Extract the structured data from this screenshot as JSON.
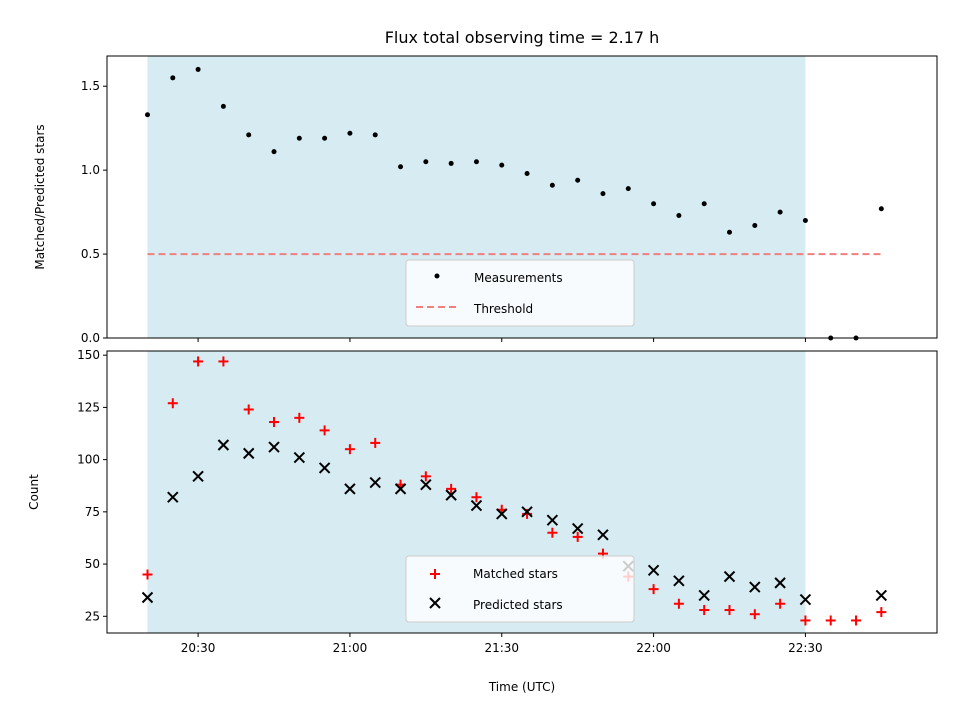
{
  "figure": {
    "title": "Flux total observing time = 2.17 h",
    "xlabel": "Time (UTC)",
    "xticks": [
      "20:30",
      "21:00",
      "21:30",
      "22:00",
      "22:30"
    ]
  },
  "colors": {
    "shade": "#add8e6",
    "threshold": "#f08080",
    "matched": "#ff0000",
    "predicted": "#000000",
    "measurements": "#000000"
  },
  "chart_data": [
    {
      "type": "scatter",
      "ylabel": "Matched/Predicted stars",
      "xlim": [
        "20:12",
        "22:56"
      ],
      "ylim": [
        0,
        1.68
      ],
      "yticks": [
        "0.0",
        "0.5",
        "1.0",
        "1.5"
      ],
      "shaded_interval": [
        "20:20",
        "22:30"
      ],
      "legend_position": "lower-center",
      "threshold": {
        "name": "Threshold",
        "value": 0.5,
        "x_range": [
          "20:20",
          "22:45"
        ]
      },
      "series": [
        {
          "name": "Measurements",
          "x": [
            "20:20",
            "20:25",
            "20:30",
            "20:35",
            "20:40",
            "20:45",
            "20:50",
            "20:55",
            "21:00",
            "21:05",
            "21:10",
            "21:15",
            "21:20",
            "21:25",
            "21:30",
            "21:35",
            "21:40",
            "21:45",
            "21:50",
            "21:55",
            "22:00",
            "22:05",
            "22:10",
            "22:15",
            "22:20",
            "22:25",
            "22:30",
            "22:35",
            "22:40",
            "22:45"
          ],
          "values": [
            1.33,
            1.55,
            1.6,
            1.38,
            1.21,
            1.11,
            1.19,
            1.19,
            1.22,
            1.21,
            1.02,
            1.05,
            1.04,
            1.05,
            1.03,
            0.98,
            0.91,
            0.94,
            0.86,
            0.89,
            0.8,
            0.73,
            0.8,
            0.63,
            0.67,
            0.75,
            0.7,
            0.0,
            0.0,
            0.77
          ]
        }
      ]
    },
    {
      "type": "scatter",
      "ylabel": "Count",
      "xlim": [
        "20:12",
        "22:56"
      ],
      "ylim": [
        17,
        152
      ],
      "yticks": [
        "25",
        "50",
        "75",
        "100",
        "125",
        "150"
      ],
      "shaded_interval": [
        "20:20",
        "22:30"
      ],
      "legend_position": "lower-center",
      "series": [
        {
          "name": "Matched stars",
          "x": [
            "20:20",
            "20:25",
            "20:30",
            "20:35",
            "20:40",
            "20:45",
            "20:50",
            "20:55",
            "21:00",
            "21:05",
            "21:10",
            "21:15",
            "21:20",
            "21:25",
            "21:30",
            "21:35",
            "21:40",
            "21:45",
            "21:50",
            "21:55",
            "22:00",
            "22:05",
            "22:10",
            "22:15",
            "22:20",
            "22:25",
            "22:30",
            "22:35",
            "22:40",
            "22:45"
          ],
          "values": [
            45,
            127,
            147,
            147,
            124,
            118,
            120,
            114,
            105,
            108,
            88,
            92,
            86,
            82,
            76,
            74,
            65,
            63,
            55,
            44,
            38,
            31,
            28,
            28,
            26,
            31,
            23,
            23,
            23,
            27
          ]
        },
        {
          "name": "Predicted stars",
          "x": [
            "20:20",
            "20:25",
            "20:30",
            "20:35",
            "20:40",
            "20:45",
            "20:50",
            "20:55",
            "21:00",
            "21:05",
            "21:10",
            "21:15",
            "21:20",
            "21:25",
            "21:30",
            "21:35",
            "21:40",
            "21:45",
            "21:50",
            "21:55",
            "22:00",
            "22:05",
            "22:10",
            "22:15",
            "22:20",
            "22:25",
            "22:30",
            "22:45"
          ],
          "values": [
            34,
            82,
            92,
            107,
            103,
            106,
            101,
            96,
            86,
            89,
            86,
            88,
            83,
            78,
            74,
            75,
            71,
            67,
            64,
            49,
            47,
            42,
            35,
            44,
            39,
            41,
            33,
            35
          ]
        }
      ]
    }
  ]
}
